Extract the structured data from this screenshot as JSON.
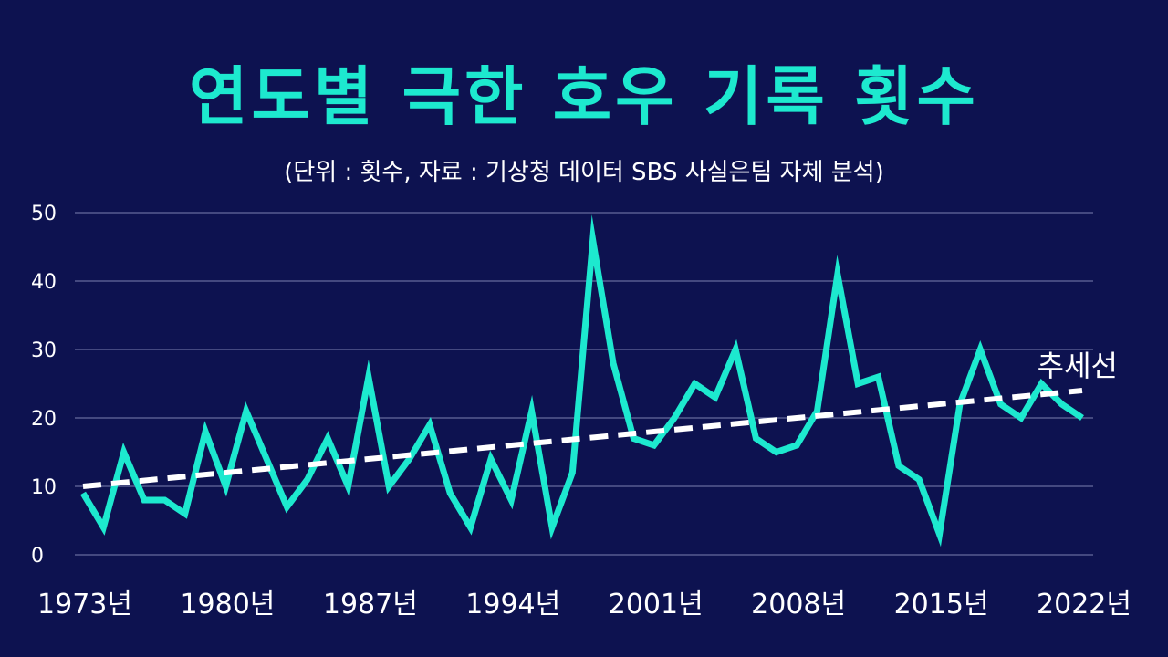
{
  "chart_data": {
    "type": "line",
    "title": "연도별 극한 호우 기록 횟수",
    "subtitle": "(단위 : 횟수,   자료 : 기상청 데이터 SBS 사실은팀 자체 분석)",
    "x": [
      1973,
      1974,
      1975,
      1976,
      1977,
      1978,
      1979,
      1980,
      1981,
      1982,
      1983,
      1984,
      1985,
      1986,
      1987,
      1988,
      1989,
      1990,
      1991,
      1992,
      1993,
      1994,
      1995,
      1996,
      1997,
      1998,
      1999,
      2000,
      2001,
      2002,
      2003,
      2004,
      2005,
      2006,
      2007,
      2008,
      2009,
      2010,
      2011,
      2012,
      2013,
      2014,
      2015,
      2016,
      2017,
      2018,
      2019,
      2020,
      2021,
      2022
    ],
    "x_tick_labels": [
      "1973년",
      "1980년",
      "1987년",
      "1994년",
      "2001년",
      "2008년",
      "2015년",
      "2022년"
    ],
    "x_tick_values": [
      1973,
      1980,
      1987,
      1994,
      2001,
      2008,
      2015,
      2022
    ],
    "series": [
      {
        "name": "극한 호우 기록 횟수",
        "color": "#1de9cf",
        "values": [
          9,
          4,
          15,
          8,
          8,
          6,
          18,
          10,
          21,
          14,
          7,
          11,
          17,
          10,
          26,
          10,
          14,
          19,
          9,
          4,
          14,
          8,
          21,
          4,
          12,
          46,
          28,
          17,
          16,
          20,
          25,
          23,
          30,
          17,
          15,
          16,
          21,
          41,
          25,
          26,
          13,
          11,
          3,
          22,
          30,
          22,
          20,
          25,
          22,
          20
        ]
      }
    ],
    "trend": {
      "label": "추세선",
      "start": [
        1973,
        10
      ],
      "end": [
        2022,
        24
      ],
      "color": "#ffffff"
    },
    "ylim": [
      0,
      50
    ],
    "y_ticks": [
      0,
      10,
      20,
      30,
      40,
      50
    ],
    "grid": true,
    "grid_color": "#7a80b0"
  }
}
